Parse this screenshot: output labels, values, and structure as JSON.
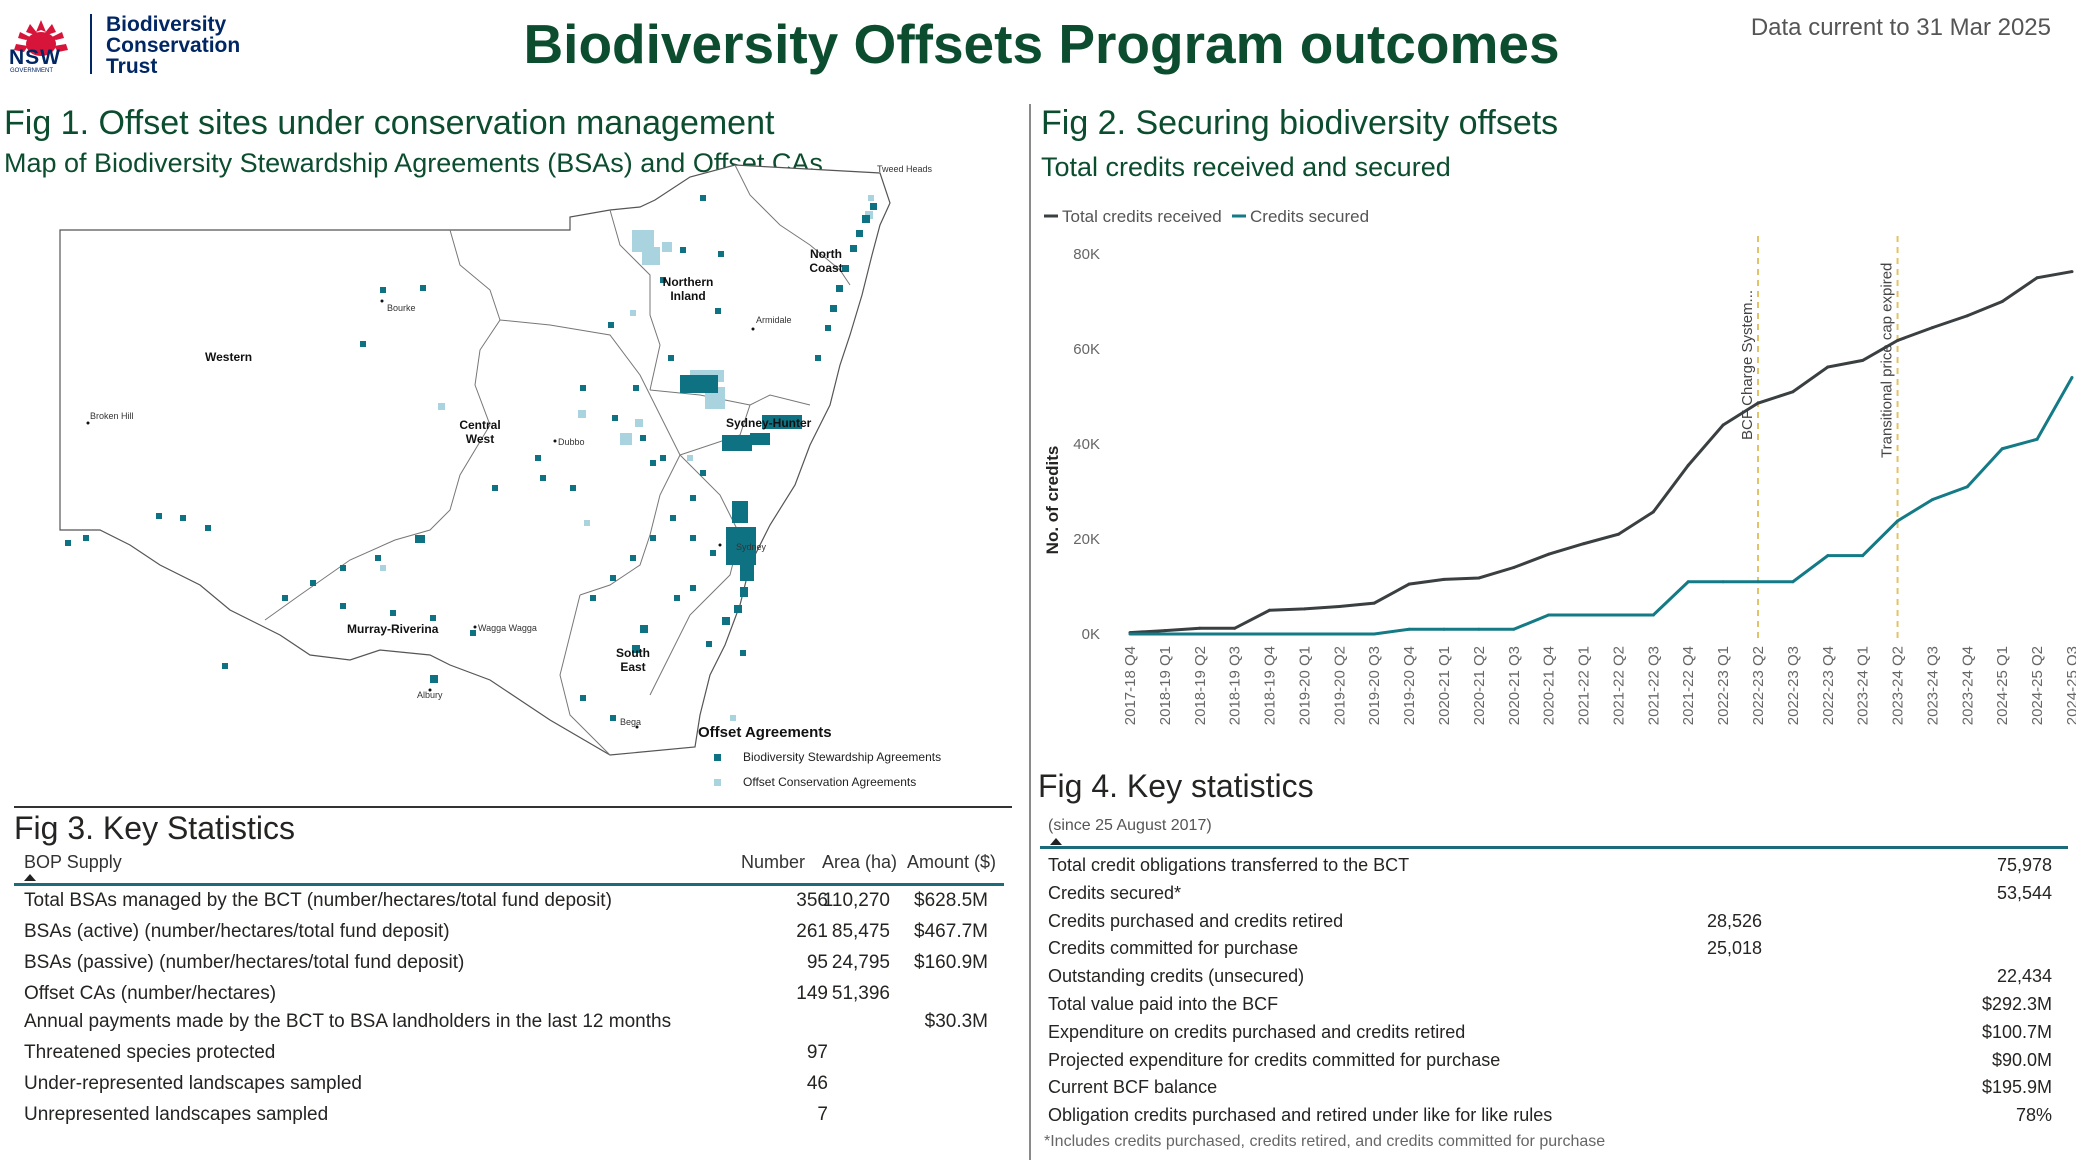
{
  "header": {
    "logo_line1": "Biodiversity",
    "logo_line2": "Conservation",
    "logo_line3": "Trust",
    "nsw": "NSW",
    "government": "GOVERNMENT",
    "title": "Biodiversity Offsets Program outcomes",
    "data_current": "Data current to 31 Mar 2025",
    "title_color": "#0b4d2e"
  },
  "fig1": {
    "title": "Fig 1. Offset sites under conservation management",
    "subtitle": "Map of Biodiversity Stewardship Agreements (BSAs) and Offset CAs",
    "regions": {
      "western": "Western",
      "central_west": [
        "Central",
        "West"
      ],
      "northern_inland": [
        "Northern",
        "Inland"
      ],
      "north_coast": [
        "North",
        "Coast"
      ],
      "sydney_hunter": "Sydney-Hunter",
      "murray_riverina": "Murray-Riverina",
      "south_east": [
        "South",
        "East"
      ]
    },
    "cities": {
      "tweed_heads": "Tweed Heads",
      "bourke": "Bourke",
      "armidale": "Armidale",
      "broken_hill": "Broken Hill",
      "dubbo": "Dubbo",
      "sydney": "Sydney",
      "wagga_wagga": "Wagga Wagga",
      "albury": "Albury",
      "bega": "Bega"
    },
    "legend": {
      "title": "Offset Agreements",
      "bsa": "Biodiversity Stewardship Agreements",
      "offset_ca": "Offset Conservation Agreements",
      "bsa_color": "#0f7282",
      "offset_ca_color": "#a9d4df"
    }
  },
  "fig2": {
    "title": "Fig 2. Securing biodiversity offsets",
    "subtitle": "Total credits received and secured",
    "legend": [
      "Total credits received",
      "Credits secured"
    ],
    "colors": {
      "received": "#3a3f41",
      "secured": "#137a86",
      "reference": "#e3c36a"
    },
    "y_axis_title": "No. of credits",
    "reference_lines": [
      {
        "label": "BCF Charge System...",
        "at": "2022-23 Q2"
      },
      {
        "label": "Transitional price cap expired",
        "at": "2023-24 Q2"
      }
    ]
  },
  "chart_data": {
    "type": "line",
    "title": "Total credits received and secured",
    "xlabel": "",
    "ylabel": "No. of credits",
    "ylim": [
      0,
      80000
    ],
    "yticks": [
      "0K",
      "20K",
      "40K",
      "60K",
      "80K"
    ],
    "categories": [
      "2017-18 Q4",
      "2018-19 Q1",
      "2018-19 Q2",
      "2018-19 Q3",
      "2018-19 Q4",
      "2019-20 Q1",
      "2019-20 Q2",
      "2019-20 Q3",
      "2019-20 Q4",
      "2020-21 Q1",
      "2020-21 Q2",
      "2020-21 Q3",
      "2020-21 Q4",
      "2021-22 Q1",
      "2021-22 Q2",
      "2021-22 Q3",
      "2021-22 Q4",
      "2022-23 Q1",
      "2022-23 Q2",
      "2022-23 Q3",
      "2022-23 Q4",
      "2023-24 Q1",
      "2023-24 Q2",
      "2023-24 Q3",
      "2023-24 Q4",
      "2024-25 Q1",
      "2024-25 Q2",
      "2024-25 Q3"
    ],
    "series": [
      {
        "name": "Total credits received",
        "values": [
          300,
          700,
          1200,
          1200,
          5000,
          5300,
          5800,
          6500,
          10500,
          11500,
          11800,
          14000,
          16800,
          19000,
          21000,
          25700,
          35500,
          44000,
          48600,
          51000,
          56200,
          57600,
          61800,
          64500,
          67000,
          70000,
          75000,
          76300
        ]
      },
      {
        "name": "Credits secured",
        "values": [
          0,
          0,
          0,
          0,
          0,
          0,
          0,
          0,
          1000,
          1000,
          1000,
          1000,
          4000,
          4000,
          4000,
          4000,
          11000,
          11000,
          11000,
          11000,
          16500,
          16500,
          23800,
          28300,
          31000,
          39000,
          41000,
          54000
        ]
      }
    ]
  },
  "fig3": {
    "title": "Fig 3. Key Statistics",
    "headers": {
      "label": "BOP Supply",
      "number": "Number",
      "area": "Area (ha)",
      "amount": "Amount ($)"
    },
    "rows": [
      {
        "label": "Total BSAs managed by the BCT (number/hectares/total fund deposit)",
        "number": "356",
        "area": "110,270",
        "amount": "$628.5M"
      },
      {
        "label": "BSAs (active) (number/hectares/total fund deposit)",
        "number": "261",
        "area": "85,475",
        "amount": "$467.7M"
      },
      {
        "label": "BSAs (passive) (number/hectares/total fund deposit)",
        "number": "95",
        "area": "24,795",
        "amount": "$160.9M"
      },
      {
        "label": "Offset CAs (number/hectares)",
        "number": "149",
        "area": "51,396",
        "amount": ""
      },
      {
        "label": "Annual payments made by the BCT to BSA landholders in the last 12 months",
        "number": "",
        "area": "",
        "amount": "$30.3M"
      },
      {
        "label": "Threatened species protected",
        "number": "97",
        "area": "",
        "amount": ""
      },
      {
        "label": "Under-represented landscapes sampled",
        "number": "46",
        "area": "",
        "amount": ""
      },
      {
        "label": "Unrepresented landscapes sampled",
        "number": "7",
        "area": "",
        "amount": ""
      }
    ]
  },
  "fig4": {
    "title": "Fig 4. Key statistics",
    "since": "(since 25 August 2017)",
    "rows": [
      {
        "label": "Total credit obligations transferred to the BCT",
        "sub": "",
        "total": "75,978"
      },
      {
        "label": "Credits secured*",
        "sub": "",
        "total": "53,544"
      },
      {
        "label": "Credits purchased and credits retired",
        "sub": "28,526",
        "total": ""
      },
      {
        "label": "Credits committed for purchase",
        "sub": "25,018",
        "total": ""
      },
      {
        "label": "Outstanding credits (unsecured)",
        "sub": "",
        "total": "22,434"
      },
      {
        "label": "Total value paid into the BCF",
        "sub": "",
        "total": "$292.3M"
      },
      {
        "label": "Expenditure on credits purchased and credits retired",
        "sub": "",
        "total": "$100.7M"
      },
      {
        "label": "Projected expenditure for credits committed for purchase",
        "sub": "",
        "total": "$90.0M"
      },
      {
        "label": "Current BCF balance",
        "sub": "",
        "total": "$195.9M"
      },
      {
        "label": "Obligation credits purchased and retired under like for like rules",
        "sub": "",
        "total": "78%"
      }
    ],
    "footnote": "*Includes credits purchased, credits retired, and credits committed for purchase"
  }
}
